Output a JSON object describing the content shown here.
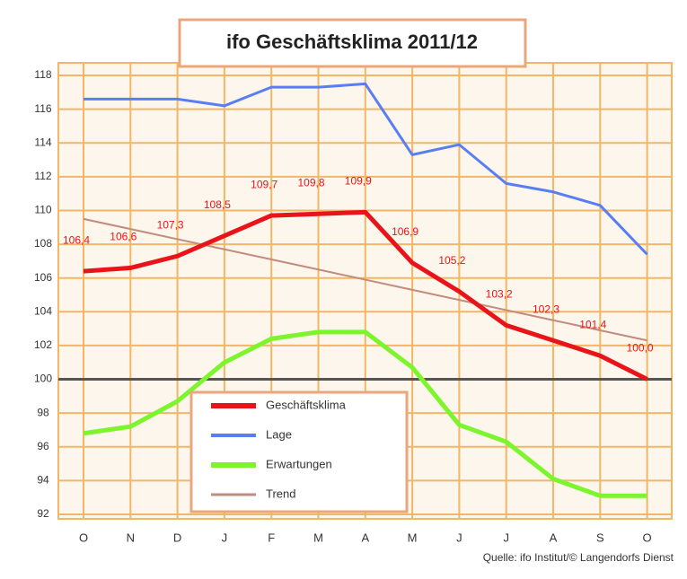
{
  "chart_data": {
    "type": "line",
    "title": "ifo Geschäftsklima 2011/12",
    "categories": [
      "O",
      "N",
      "D",
      "J",
      "F",
      "M",
      "A",
      "M",
      "J",
      "J",
      "A",
      "S",
      "O"
    ],
    "series": [
      {
        "name": "Geschäftsklima",
        "color": "#e8141a",
        "width": 5,
        "values": [
          106.4,
          106.6,
          107.3,
          108.5,
          109.7,
          109.8,
          109.9,
          106.9,
          105.2,
          103.2,
          102.3,
          101.4,
          100.0
        ],
        "value_labels": [
          "106,4",
          "106,6",
          "107,3",
          "108,5",
          "109,7",
          "109,8",
          "109,9",
          "106,9",
          "105,2",
          "103,2",
          "102,3",
          "101,4",
          "100,0"
        ]
      },
      {
        "name": "Lage",
        "color": "#5a7ef2",
        "width": 3,
        "values": [
          116.6,
          116.6,
          116.6,
          116.2,
          117.3,
          117.3,
          117.5,
          113.3,
          113.9,
          111.6,
          111.1,
          110.3,
          107.4
        ]
      },
      {
        "name": "Erwartungen",
        "color": "#7cf52c",
        "width": 5,
        "values": [
          96.8,
          97.2,
          98.7,
          101.0,
          102.4,
          102.8,
          102.8,
          100.7,
          97.3,
          96.3,
          94.1,
          93.1,
          93.1
        ]
      },
      {
        "name": "Trend",
        "color": "#c38a7e",
        "width": 2,
        "values": [
          109.5,
          108.9,
          108.3,
          107.7,
          107.1,
          106.5,
          105.9,
          105.3,
          104.7,
          104.1,
          103.5,
          102.9,
          102.3
        ]
      }
    ],
    "hline": 100,
    "ylim": [
      92,
      118
    ],
    "yticks": [
      92,
      94,
      96,
      98,
      100,
      102,
      104,
      106,
      108,
      110,
      112,
      114,
      116,
      118
    ],
    "grid": true,
    "source": "Quelle: ifo Institut/© Langendorfs Dienst"
  }
}
